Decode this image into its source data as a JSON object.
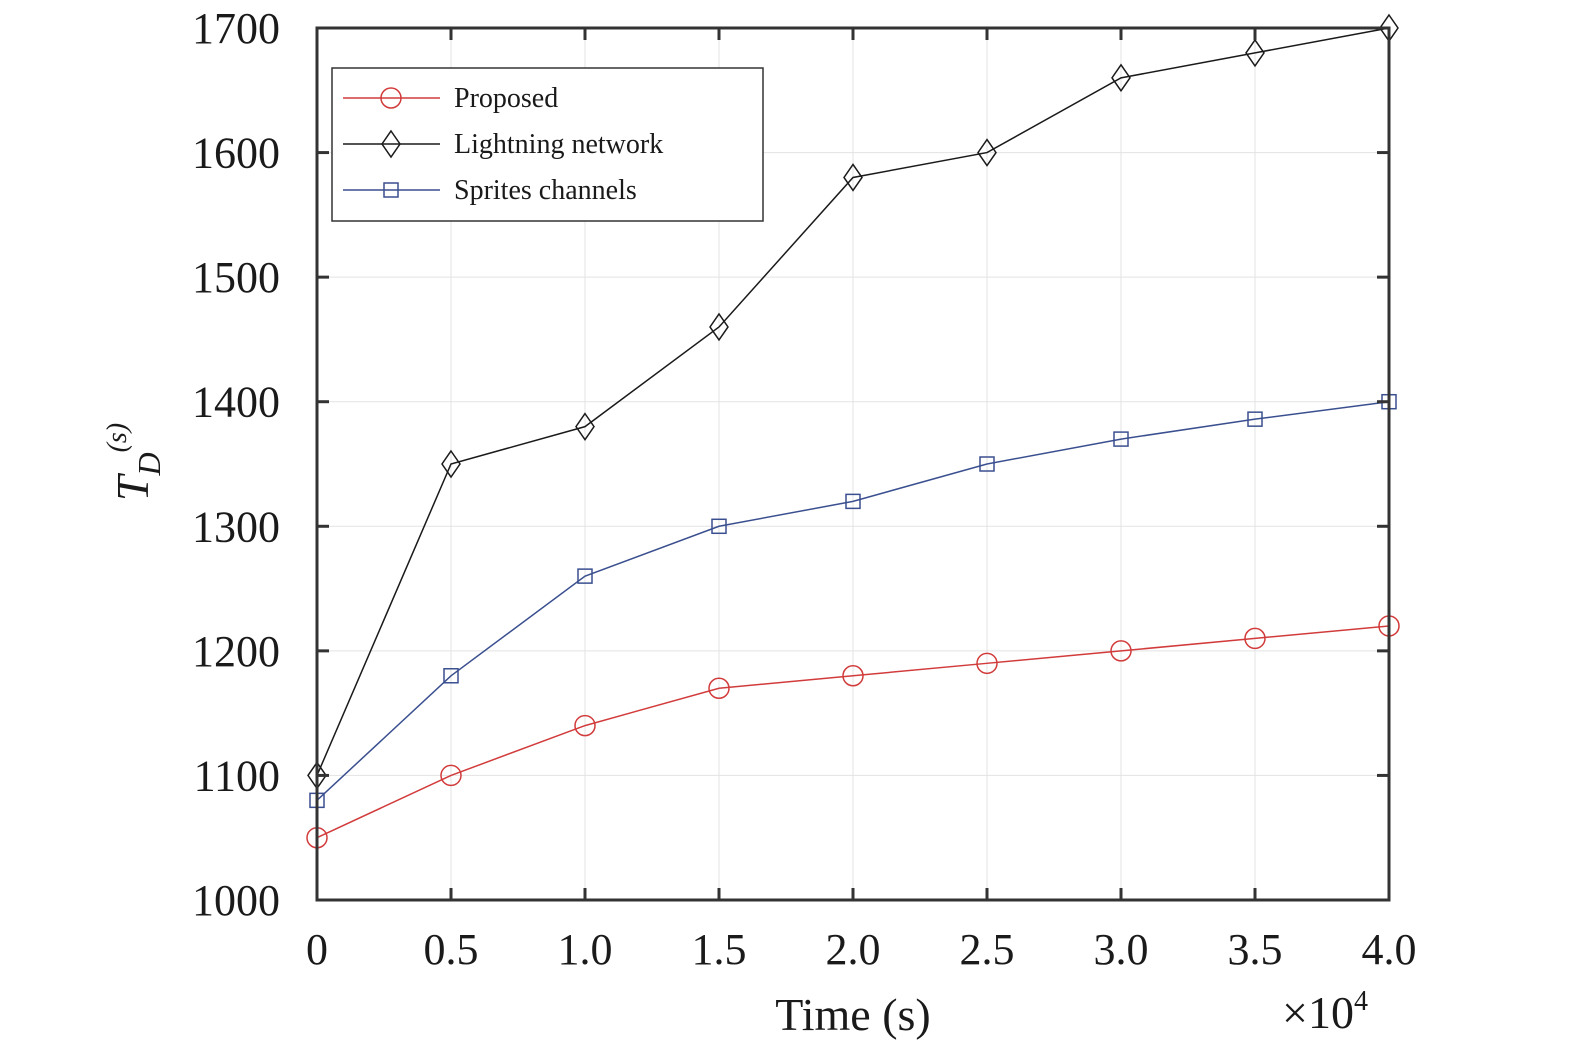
{
  "chart_data": {
    "type": "line",
    "xlabel": "Time (s)",
    "ylabel_base": "T",
    "ylabel_sub": "D",
    "ylabel_sup": "(s)",
    "x_multiplier_base": "×10",
    "x_multiplier_exp": "4",
    "x": [
      0,
      0.5,
      1.0,
      1.5,
      2.0,
      2.5,
      3.0,
      3.5,
      4.0
    ],
    "xlim": [
      0,
      4.0
    ],
    "ylim": [
      1000,
      1700
    ],
    "x_ticks": [
      "0",
      "0.5",
      "1.0",
      "1.5",
      "2.0",
      "2.5",
      "3.0",
      "3.5",
      "4.0"
    ],
    "y_ticks": [
      "1000",
      "1100",
      "1200",
      "1300",
      "1400",
      "1500",
      "1600",
      "1700"
    ],
    "grid": true,
    "legend_position": "top-left",
    "series": [
      {
        "name": "Proposed",
        "color": "#d23b3b",
        "marker": "circle",
        "values": [
          1050,
          1100,
          1140,
          1170,
          1180,
          1190,
          1200,
          1210,
          1220
        ]
      },
      {
        "name": "Lightning network",
        "color": "#1a1a1a",
        "marker": "diamond",
        "values": [
          1100,
          1350,
          1380,
          1460,
          1580,
          1600,
          1660,
          1680,
          1700
        ]
      },
      {
        "name": "Sprites channels",
        "color": "#3a4f8f",
        "marker": "square",
        "values": [
          1080,
          1180,
          1260,
          1300,
          1320,
          1350,
          1370,
          1386,
          1400
        ]
      }
    ]
  }
}
